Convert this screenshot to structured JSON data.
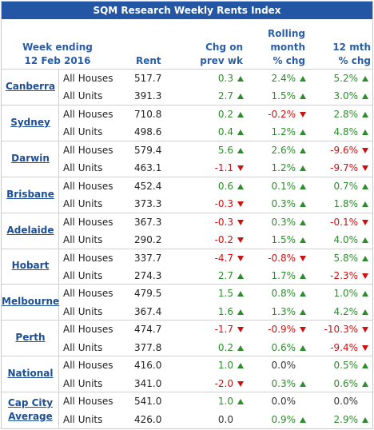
{
  "title": "SQM Research Weekly Rents Index",
  "header": {
    "week": [
      "Week ending",
      "12 Feb 2016"
    ],
    "rent": [
      "Rent"
    ],
    "chg": [
      "Chg on",
      "prev wk"
    ],
    "rolling": [
      "Rolling",
      "month",
      "% chg"
    ],
    "annual": [
      "12 mth",
      "% chg"
    ]
  },
  "groups": [
    {
      "city": [
        "Canberra"
      ],
      "rows": [
        [
          "All Houses",
          "517.7",
          "0.3",
          "2.4%",
          "5.2%"
        ],
        [
          "All Units",
          "391.3",
          "2.7",
          "1.5%",
          "3.0%"
        ]
      ]
    },
    {
      "city": [
        "Sydney"
      ],
      "rows": [
        [
          "All Houses",
          "710.8",
          "0.2",
          "-0.2%",
          "2.8%"
        ],
        [
          "All Units",
          "498.6",
          "0.4",
          "1.2%",
          "4.8%"
        ]
      ]
    },
    {
      "city": [
        "Darwin"
      ],
      "rows": [
        [
          "All Houses",
          "579.4",
          "5.6",
          "2.6%",
          "-9.6%"
        ],
        [
          "All Units",
          "463.1",
          "-1.1",
          "1.2%",
          "-9.7%"
        ]
      ]
    },
    {
      "city": [
        "Brisbane"
      ],
      "rows": [
        [
          "All Houses",
          "452.4",
          "0.6",
          "0.1%",
          "0.7%"
        ],
        [
          "All Units",
          "373.3",
          "-0.3",
          "0.3%",
          "1.8%"
        ]
      ]
    },
    {
      "city": [
        "Adelaide"
      ],
      "rows": [
        [
          "All Houses",
          "367.3",
          "-0.3",
          "0.3%",
          "-0.1%"
        ],
        [
          "All Units",
          "290.2",
          "-0.2",
          "1.5%",
          "4.0%"
        ]
      ]
    },
    {
      "city": [
        "Hobart"
      ],
      "rows": [
        [
          "All Houses",
          "337.7",
          "-4.7",
          "-0.8%",
          "5.8%"
        ],
        [
          "All Units",
          "274.3",
          "2.7",
          "1.7%",
          "-2.3%"
        ]
      ]
    },
    {
      "city": [
        "Melbourne"
      ],
      "rows": [
        [
          "All Houses",
          "479.5",
          "1.5",
          "0.8%",
          "1.0%"
        ],
        [
          "All Units",
          "367.4",
          "1.6",
          "1.3%",
          "4.2%"
        ]
      ]
    },
    {
      "city": [
        "Perth"
      ],
      "rows": [
        [
          "All Houses",
          "474.7",
          "-1.7",
          "-0.9%",
          "-10.3%"
        ],
        [
          "All Units",
          "377.8",
          "0.2",
          "0.6%",
          "-9.4%"
        ]
      ]
    },
    {
      "city": [
        "National"
      ],
      "rows": [
        [
          "All Houses",
          "416.0",
          "1.0",
          "0.0%",
          "0.5%"
        ],
        [
          "All Units",
          "341.0",
          "-2.0",
          "0.3%",
          "0.6%"
        ]
      ]
    },
    {
      "city": [
        "Cap City",
        "Average"
      ],
      "rows": [
        [
          "All Houses",
          "541.0",
          "1.0",
          "0.0%",
          "0.0%"
        ],
        [
          "All Units",
          "426.0",
          "0.0",
          "0.9%",
          "2.9%"
        ]
      ]
    }
  ]
}
